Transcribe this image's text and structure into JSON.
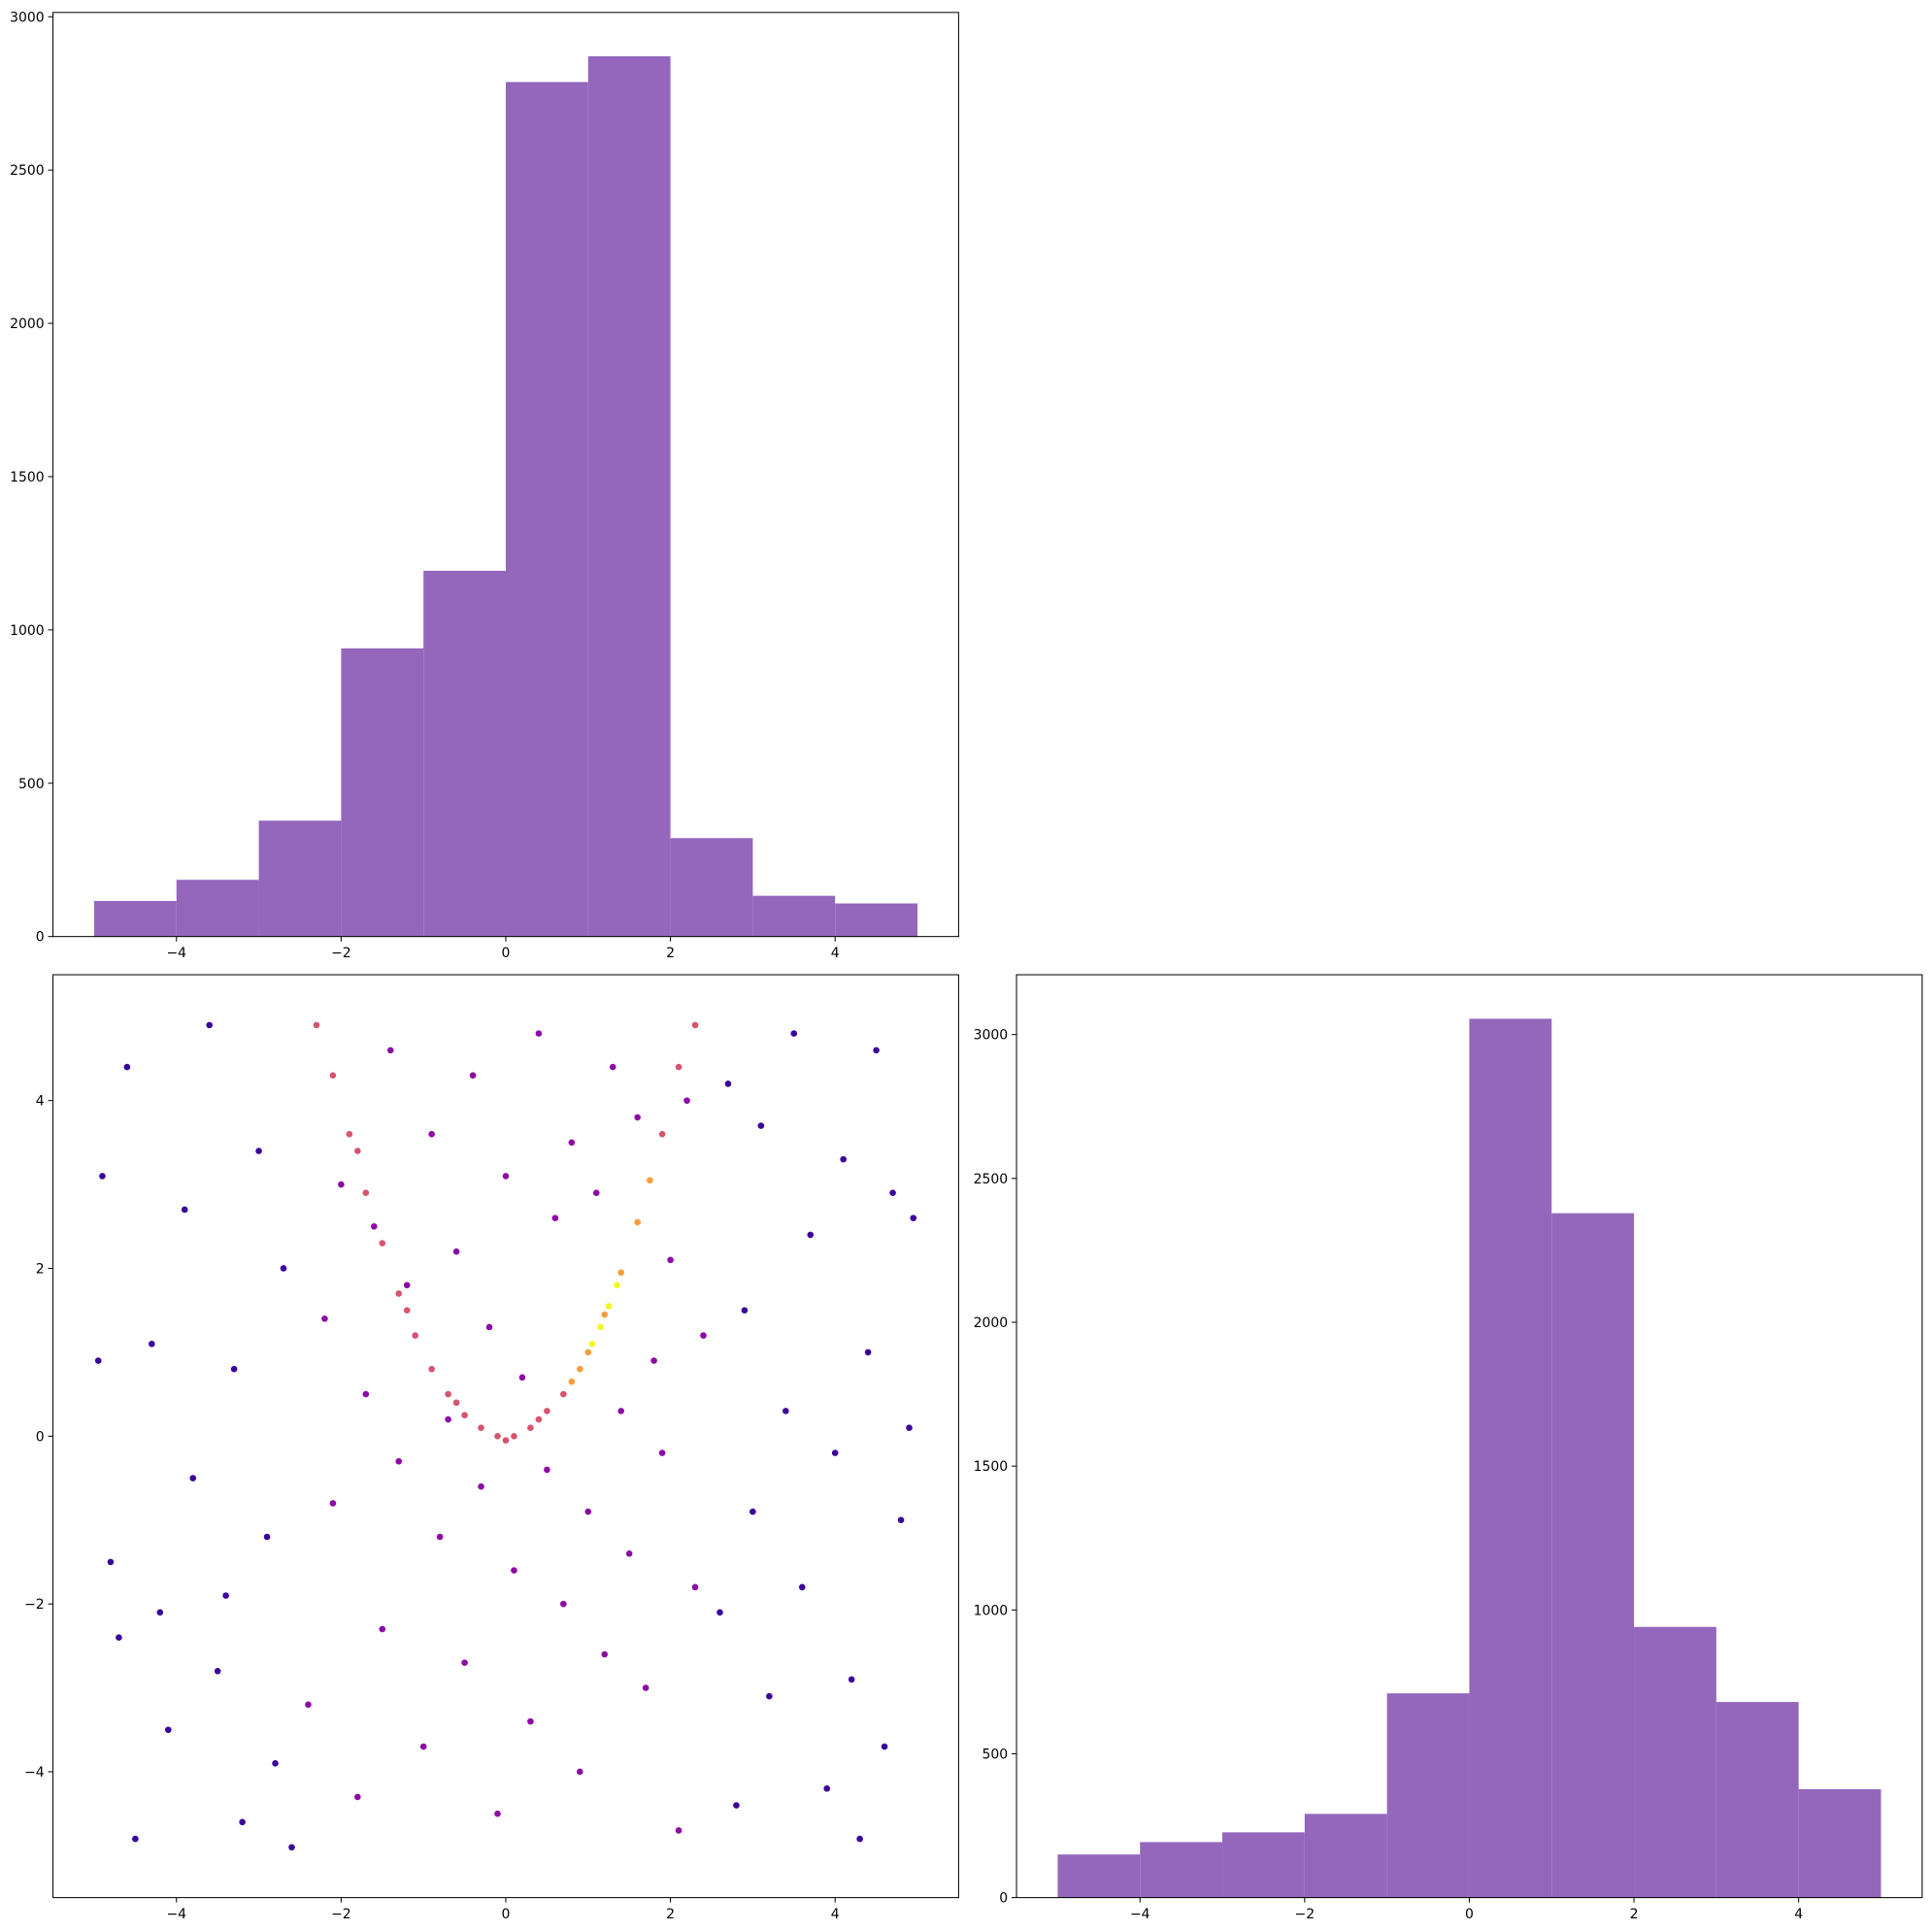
{
  "chart_data": [
    {
      "type": "histogram",
      "color": "#9467bd",
      "bins": [
        -5,
        -4,
        -3,
        -2,
        -1,
        0,
        1,
        2,
        3,
        4,
        5
      ],
      "values": [
        116,
        185,
        378,
        940,
        1193,
        2787,
        2871,
        321,
        133,
        108
      ],
      "xlim": [
        -5.5,
        5.5
      ],
      "ylim": [
        0,
        3014
      ],
      "xticks": [
        {
          "value": -4,
          "label": "−4"
        },
        {
          "value": -2,
          "label": "−2"
        },
        0,
        2,
        4
      ],
      "yticks": [
        0,
        500,
        1000,
        1500,
        2000,
        2500,
        3000
      ]
    },
    {
      "type": "scatter",
      "xlim": [
        -5.5,
        5.5
      ],
      "ylim": [
        -5.5,
        5.5
      ],
      "xticks": [
        {
          "value": -4,
          "label": "−4"
        },
        {
          "value": -2,
          "label": "−2"
        },
        0,
        2,
        4
      ],
      "yticks": [
        {
          "value": -4,
          "label": "−4"
        },
        {
          "value": -2,
          "label": "−2"
        },
        0,
        2,
        4
      ],
      "series": [
        {
          "color": "#3a049a",
          "x": [
            -4.9,
            -4.8,
            -4.6,
            -4.7,
            -4.5,
            -4.3,
            -4.1,
            -3.9,
            -3.8,
            -3.6,
            -3.5,
            -3.3,
            -3.2,
            -3.0,
            -2.9,
            -2.8,
            -2.7,
            -2.6,
            2.6,
            2.7,
            2.8,
            2.9,
            3.0,
            3.1,
            3.2,
            3.4,
            3.5,
            3.6,
            3.7,
            3.9,
            4.0,
            4.1,
            4.2,
            4.4,
            4.5,
            4.6,
            4.7,
            4.8,
            4.9,
            4.95,
            -4.95,
            -4.2,
            4.3,
            -3.4
          ],
          "y": [
            3.1,
            -1.5,
            4.4,
            -2.4,
            -4.8,
            1.1,
            -3.5,
            2.7,
            -0.5,
            4.9,
            -2.8,
            0.8,
            -4.6,
            3.4,
            -1.2,
            -3.9,
            2.0,
            -4.9,
            -2.1,
            4.2,
            -4.4,
            1.5,
            -0.9,
            3.7,
            -3.1,
            0.3,
            4.8,
            -1.8,
            2.4,
            -4.2,
            -0.2,
            3.3,
            -2.9,
            1.0,
            4.6,
            -3.7,
            2.9,
            -1.0,
            0.1,
            2.6,
            0.9,
            -2.1,
            -4.8,
            -1.9
          ]
        },
        {
          "color": "#8d0ba5",
          "x": [
            -2.4,
            -2.2,
            -2.1,
            -2.0,
            -1.8,
            -1.7,
            -1.6,
            -1.5,
            -1.4,
            -1.3,
            -1.2,
            -1.0,
            -0.9,
            -0.8,
            -0.7,
            -0.6,
            -0.5,
            -0.4,
            -0.3,
            -0.2,
            -0.1,
            0.0,
            0.1,
            0.2,
            0.3,
            0.4,
            0.5,
            0.6,
            0.7,
            0.8,
            0.9,
            1.0,
            1.1,
            1.2,
            1.3,
            1.4,
            1.5,
            1.6,
            1.7,
            1.8,
            1.9,
            2.0,
            2.1,
            2.2,
            2.3,
            2.4
          ],
          "y": [
            -3.2,
            1.4,
            -0.8,
            3.0,
            -4.3,
            0.5,
            2.5,
            -2.3,
            4.6,
            -0.3,
            1.8,
            -3.7,
            3.6,
            -1.2,
            0.2,
            2.2,
            -2.7,
            4.3,
            -0.6,
            1.3,
            -4.5,
            3.1,
            -1.6,
            0.7,
            -3.4,
            4.8,
            -0.4,
            2.6,
            -2.0,
            3.5,
            -4.0,
            -0.9,
            2.9,
            -2.6,
            4.4,
            0.3,
            -1.4,
            3.8,
            -3.0,
            0.9,
            -0.2,
            2.1,
            -4.7,
            4.0,
            -1.8,
            1.2
          ]
        },
        {
          "color": "#d5546e",
          "x": [
            -2.3,
            -2.1,
            -1.9,
            -1.7,
            -1.5,
            -1.3,
            -1.1,
            -0.9,
            -0.7,
            -0.5,
            -0.3,
            -0.1,
            0.1,
            0.3,
            0.5,
            0.7,
            1.9,
            2.1,
            2.3,
            -1.8,
            -1.2,
            -0.6,
            0.0,
            0.4
          ],
          "y": [
            4.9,
            4.3,
            3.6,
            2.9,
            2.3,
            1.7,
            1.2,
            0.8,
            0.5,
            0.25,
            0.1,
            0.0,
            0.0,
            0.1,
            0.3,
            0.5,
            3.6,
            4.4,
            4.9,
            3.4,
            1.5,
            0.4,
            -0.05,
            0.2
          ]
        },
        {
          "color": "#fa9e3b",
          "x": [
            0.8,
            1.0,
            1.2,
            1.4,
            1.6,
            1.75,
            0.9
          ],
          "y": [
            0.65,
            1.0,
            1.45,
            1.95,
            2.55,
            3.05,
            0.8
          ]
        },
        {
          "color": "#f0f921",
          "x": [
            1.05,
            1.15,
            1.25,
            1.35
          ],
          "y": [
            1.1,
            1.3,
            1.55,
            1.8
          ]
        }
      ]
    },
    {
      "type": "histogram",
      "color": "#9467bd",
      "bins": [
        -5,
        -4,
        -3,
        -2,
        -1,
        0,
        1,
        2,
        3,
        4,
        5
      ],
      "values": [
        150,
        193,
        227,
        291,
        710,
        3055,
        2379,
        941,
        680,
        377
      ],
      "xlim": [
        -5.5,
        5.5
      ],
      "ylim": [
        0,
        3208
      ],
      "xticks": [
        {
          "value": -4,
          "label": "−4"
        },
        {
          "value": -2,
          "label": "−2"
        },
        0,
        2,
        4
      ],
      "yticks": [
        0,
        500,
        1000,
        1500,
        2000,
        2500,
        3000
      ]
    }
  ]
}
